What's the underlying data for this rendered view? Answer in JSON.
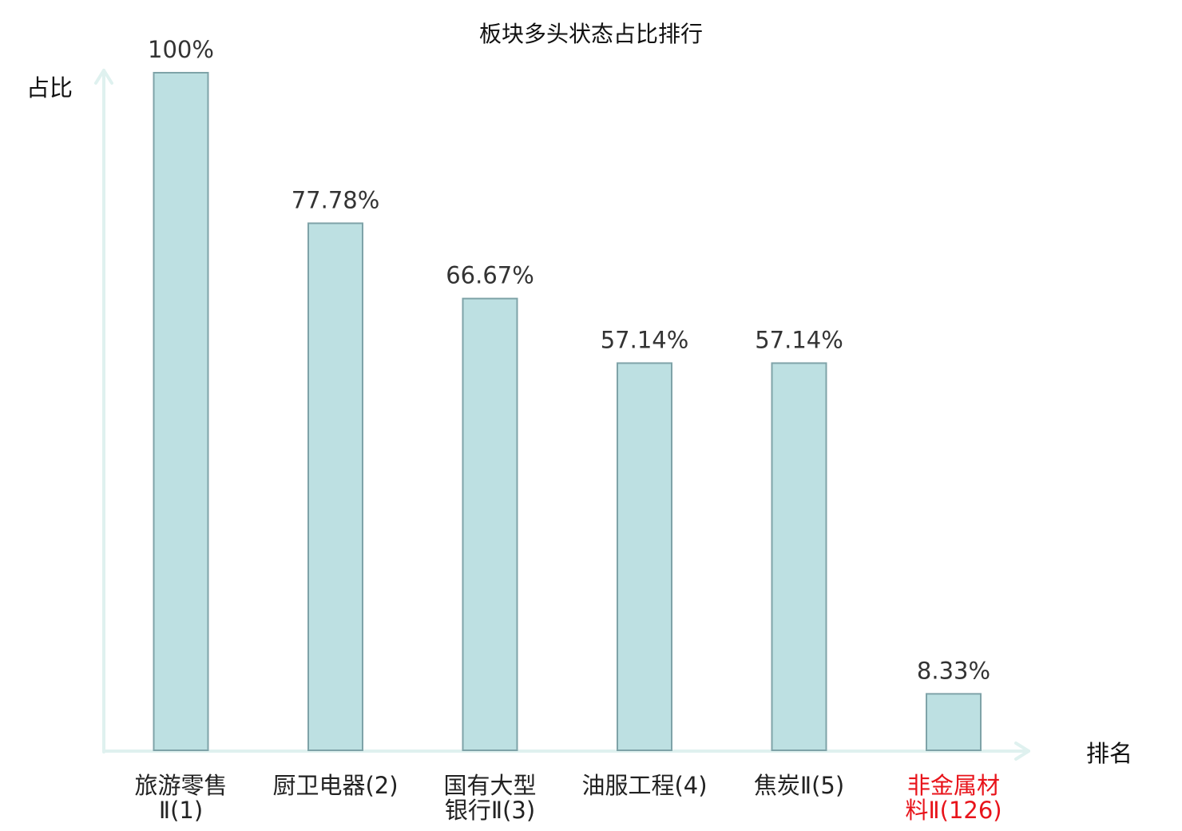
{
  "chart_data": {
    "type": "bar",
    "title": "板块多头状态占比排行",
    "ylabel": "占比",
    "xlabel": "排名",
    "ylim": [
      0,
      100
    ],
    "grid": false,
    "categories": [
      [
        "旅游零售",
        "Ⅱ(1)"
      ],
      [
        "厨卫电器(2)"
      ],
      [
        "国有大型",
        "银行Ⅱ(3)"
      ],
      [
        "油服工程(4)"
      ],
      [
        "焦炭Ⅱ(5)"
      ],
      [
        "非金属材",
        "料Ⅱ(126)"
      ]
    ],
    "values": [
      100,
      77.78,
      66.67,
      57.14,
      57.14,
      8.33
    ],
    "value_labels": [
      "100%",
      "77.78%",
      "66.67%",
      "57.14%",
      "57.14%",
      "8.33%"
    ],
    "highlight_index": 5
  },
  "colors": {
    "bar_fill": "#bde0e2",
    "bar_stroke": "#7fa3a8",
    "axis": "#dff1ef",
    "label_default": "#222222",
    "label_highlight": "#e8141b"
  }
}
